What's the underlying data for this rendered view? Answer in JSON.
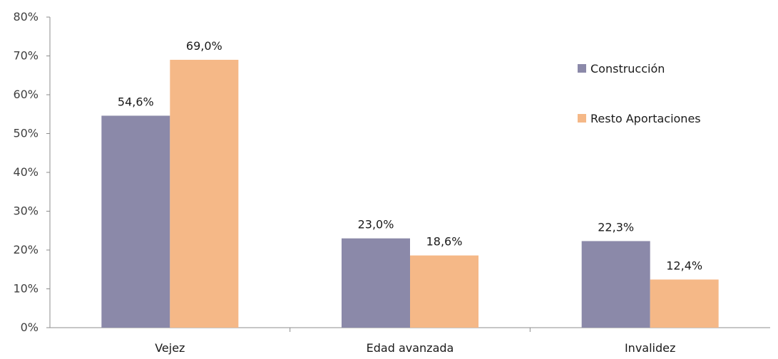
{
  "chart_data": {
    "type": "bar",
    "categories": [
      "Vejez",
      "Edad avanzada",
      "Invalidez"
    ],
    "series": [
      {
        "name": "Construcción",
        "values": [
          54.6,
          23.0,
          22.3
        ],
        "labels": [
          "54,6%",
          "23,0%",
          "22,3%"
        ],
        "color": "#8b89a9"
      },
      {
        "name": "Resto Aportaciones",
        "values": [
          69.0,
          18.6,
          12.4
        ],
        "labels": [
          "69,0%",
          "18,6%",
          "12,4%"
        ],
        "color": "#f5b887"
      }
    ],
    "yticks": [
      "0%",
      "10%",
      "20%",
      "30%",
      "40%",
      "50%",
      "60%",
      "70%",
      "80%"
    ],
    "ylim": [
      0,
      80
    ],
    "title": "",
    "xlabel": "",
    "ylabel": "",
    "grid": false,
    "legend_position": "top-right"
  }
}
